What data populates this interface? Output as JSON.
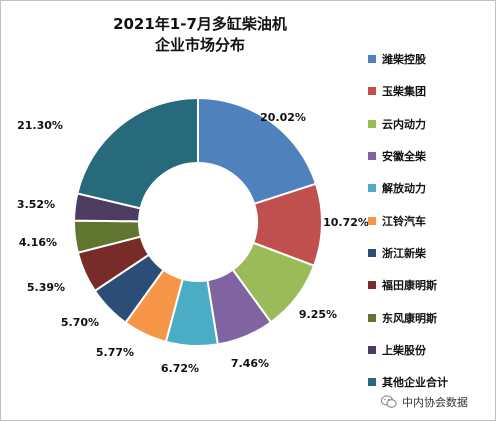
{
  "chart_data": {
    "type": "pie",
    "subtype": "donut",
    "title_lines": [
      "2021年1-7月多缸柴油机",
      "企业市场分布"
    ],
    "legend_position": "right",
    "slices": [
      {
        "name": "潍柴控股",
        "value": 20.02,
        "label": "20.02%",
        "color": "#4F81BD"
      },
      {
        "name": "玉柴集团",
        "value": 10.72,
        "label": "10.72%",
        "color": "#C0504D"
      },
      {
        "name": "云内动力",
        "value": 9.25,
        "label": "9.25%",
        "color": "#9BBB59"
      },
      {
        "name": "安徽全柴",
        "value": 7.46,
        "label": "7.46%",
        "color": "#8064A2"
      },
      {
        "name": "解放动力",
        "value": 6.72,
        "label": "6.72%",
        "color": "#4BACC6"
      },
      {
        "name": "江铃汽车",
        "value": 5.77,
        "label": "5.77%",
        "color": "#F79646"
      },
      {
        "name": "浙江新柴",
        "value": 5.7,
        "label": "5.70%",
        "color": "#2C4D75"
      },
      {
        "name": "福田康明斯",
        "value": 5.39,
        "label": "5.39%",
        "color": "#772C2A"
      },
      {
        "name": "东风康明斯",
        "value": 4.16,
        "label": "4.16%",
        "color": "#5F7530"
      },
      {
        "name": "上柴股份",
        "value": 3.52,
        "label": "3.52%",
        "color": "#4D3B62"
      },
      {
        "name": "其他企业合计",
        "value": 21.3,
        "label": "21.30%",
        "color": "#276A7C"
      }
    ]
  },
  "watermark": {
    "text": "中内协会数据",
    "icon": "wechat-icon"
  }
}
